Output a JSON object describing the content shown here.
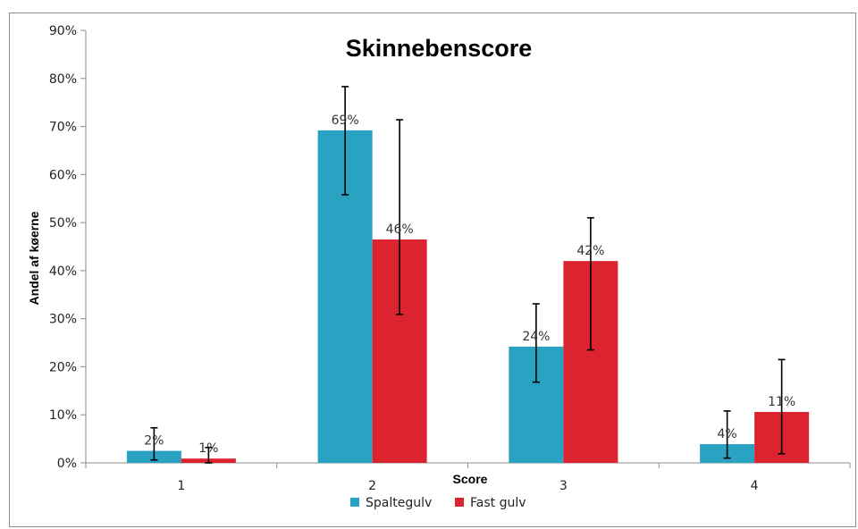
{
  "chart_data": {
    "type": "bar",
    "title": "Skinnebenscore",
    "xlabel": "Score",
    "ylabel": "Andel af køerne",
    "categories": [
      "1",
      "2",
      "3",
      "4"
    ],
    "ylim": [
      0,
      90
    ],
    "yticks": [
      0,
      10,
      20,
      30,
      40,
      50,
      60,
      70,
      80,
      90
    ],
    "ytick_labels": [
      "0%",
      "10%",
      "20%",
      "30%",
      "40%",
      "50%",
      "60%",
      "70%",
      "80%",
      "90%"
    ],
    "grid": false,
    "legend_position": "bottom",
    "series": [
      {
        "name": "Spaltegulv",
        "color": "#2aa2c2",
        "values": [
          2.5,
          69.2,
          24.2,
          3.9
        ],
        "data_labels": [
          "2%",
          "69%",
          "24%",
          "4%"
        ],
        "error_low": [
          0.6,
          55.8,
          16.8,
          1.0
        ],
        "error_high": [
          7.3,
          78.3,
          33.1,
          10.8
        ]
      },
      {
        "name": "Fast gulv",
        "color": "#dc2330",
        "values": [
          0.9,
          46.5,
          42.0,
          10.6
        ],
        "data_labels": [
          "1%",
          "46%",
          "42%",
          "11%"
        ],
        "error_low": [
          0.0,
          30.9,
          23.5,
          1.9
        ],
        "error_high": [
          3.2,
          71.4,
          51.0,
          21.5
        ]
      }
    ]
  }
}
